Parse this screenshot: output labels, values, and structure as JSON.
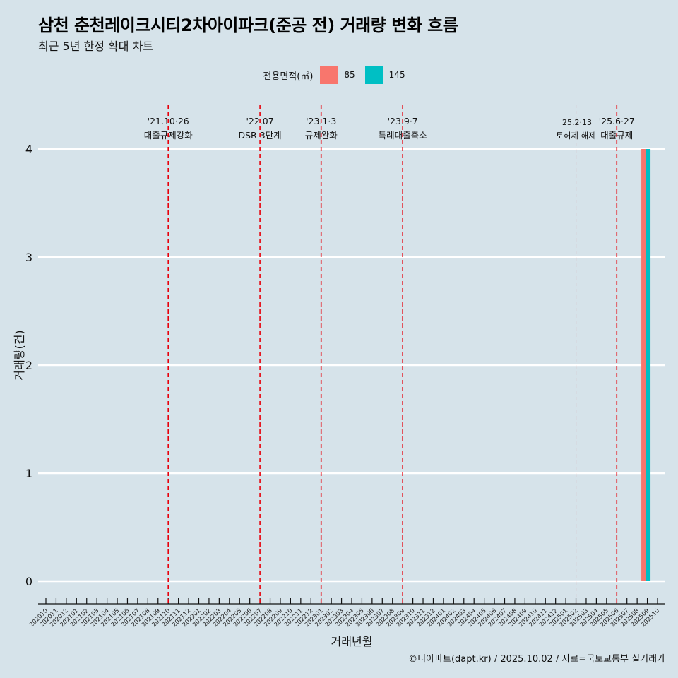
{
  "title": "삼천 춘천레이크시티2차아이파크(준공 전) 거래량 변화 흐름",
  "subtitle": "최근 5년 한정 확대 차트",
  "caption": "©디아파트(dapt.kr) / 2025.10.02 / 자료=국토교통부 실거래가",
  "colors": {
    "background": "#d6e3ea",
    "s85": "#f8766d",
    "s145": "#00bfc4",
    "event_line": "#e8000b"
  },
  "chart_data": {
    "type": "bar",
    "title": "삼천 춘천레이크시티2차아이파크(준공 전) 거래량 변화 흐름",
    "xlabel": "거래년월",
    "ylabel": "거래량(건)",
    "ylim": [
      0,
      4
    ],
    "yticks": [
      0,
      1,
      2,
      3,
      4
    ],
    "legend_title": "전용면적(㎡)",
    "legend_position": "top",
    "categories": [
      "202010",
      "202011",
      "202012",
      "202101",
      "202102",
      "202103",
      "202104",
      "202105",
      "202106",
      "202107",
      "202108",
      "202109",
      "202110",
      "202111",
      "202112",
      "202201",
      "202202",
      "202203",
      "202204",
      "202205",
      "202206",
      "202207",
      "202208",
      "202209",
      "202210",
      "202211",
      "202212",
      "202301",
      "202302",
      "202303",
      "202304",
      "202305",
      "202306",
      "202307",
      "202308",
      "202309",
      "202310",
      "202311",
      "202312",
      "202401",
      "202402",
      "202403",
      "202404",
      "202405",
      "202406",
      "202407",
      "202408",
      "202409",
      "202410",
      "202411",
      "202412",
      "202501",
      "202502",
      "202503",
      "202504",
      "202505",
      "202506",
      "202507",
      "202508",
      "202509",
      "202510"
    ],
    "series": [
      {
        "name": "85",
        "color": "#f8766d",
        "values": {
          "202509": 4
        }
      },
      {
        "name": "145",
        "color": "#00bfc4",
        "values": {
          "202509": 4
        }
      }
    ],
    "events": [
      {
        "at": "202110",
        "line1": "'21.10·26",
        "line2": "대출규제강화",
        "style": "thick"
      },
      {
        "at": "202207",
        "line1": "'22.07",
        "line2": "DSR 3단계",
        "style": "thick"
      },
      {
        "at": "202301",
        "line1": "'23.1·3",
        "line2": "규제완화",
        "style": "thick"
      },
      {
        "at": "202309",
        "line1": "'23.9·7",
        "line2": "특례대출축소",
        "style": "thick"
      },
      {
        "at": "202502",
        "line1": "'25.2·13",
        "line2": "토허제 해제",
        "style": "thin"
      },
      {
        "at": "202506",
        "line1": "'25.6·27",
        "line2": "대출규제",
        "style": "thick"
      }
    ]
  }
}
